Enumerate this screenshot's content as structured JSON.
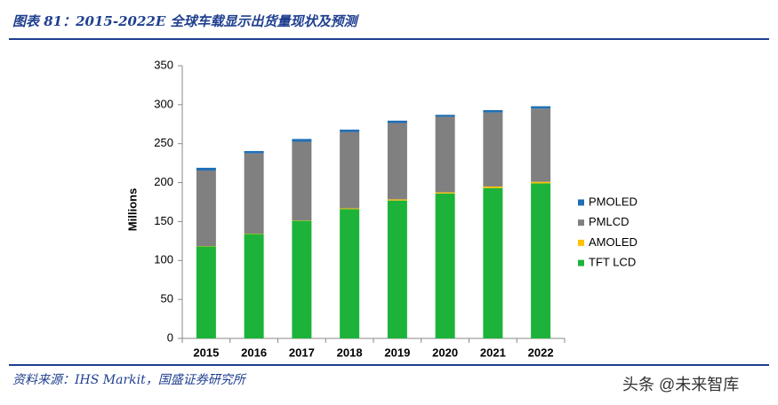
{
  "chart_data": {
    "type": "stacked-bar",
    "title": "图表 81：2015-2022E 全球车载显示出货量现状及预测",
    "y_label": "Millions",
    "categories": [
      "2015",
      "2016",
      "2017",
      "2018",
      "2019",
      "2020",
      "2021",
      "2022"
    ],
    "series": [
      {
        "name": "TFT LCD",
        "color": "#1db33a",
        "values": [
          118,
          134,
          151,
          166,
          177,
          186,
          193,
          199
        ]
      },
      {
        "name": "AMOLED",
        "color": "#ffc000",
        "values": [
          0.5,
          0.5,
          0.5,
          1,
          1.5,
          1.5,
          2,
          2
        ]
      },
      {
        "name": "PMLCD",
        "color": "#808080",
        "values": [
          97,
          103,
          101,
          98,
          98,
          97,
          95,
          94
        ]
      },
      {
        "name": "PMOLED",
        "color": "#1f6fb5",
        "values": [
          3.5,
          3,
          3.5,
          3,
          3,
          2.5,
          3,
          3
        ]
      }
    ],
    "ylim": [
      0,
      350
    ],
    "yticks": [
      0,
      50,
      100,
      150,
      200,
      250,
      300,
      350
    ],
    "legend": "right"
  },
  "source": "资料来源：IHS Markit，国盛证券研究所",
  "watermark": "头条 @未来智库"
}
